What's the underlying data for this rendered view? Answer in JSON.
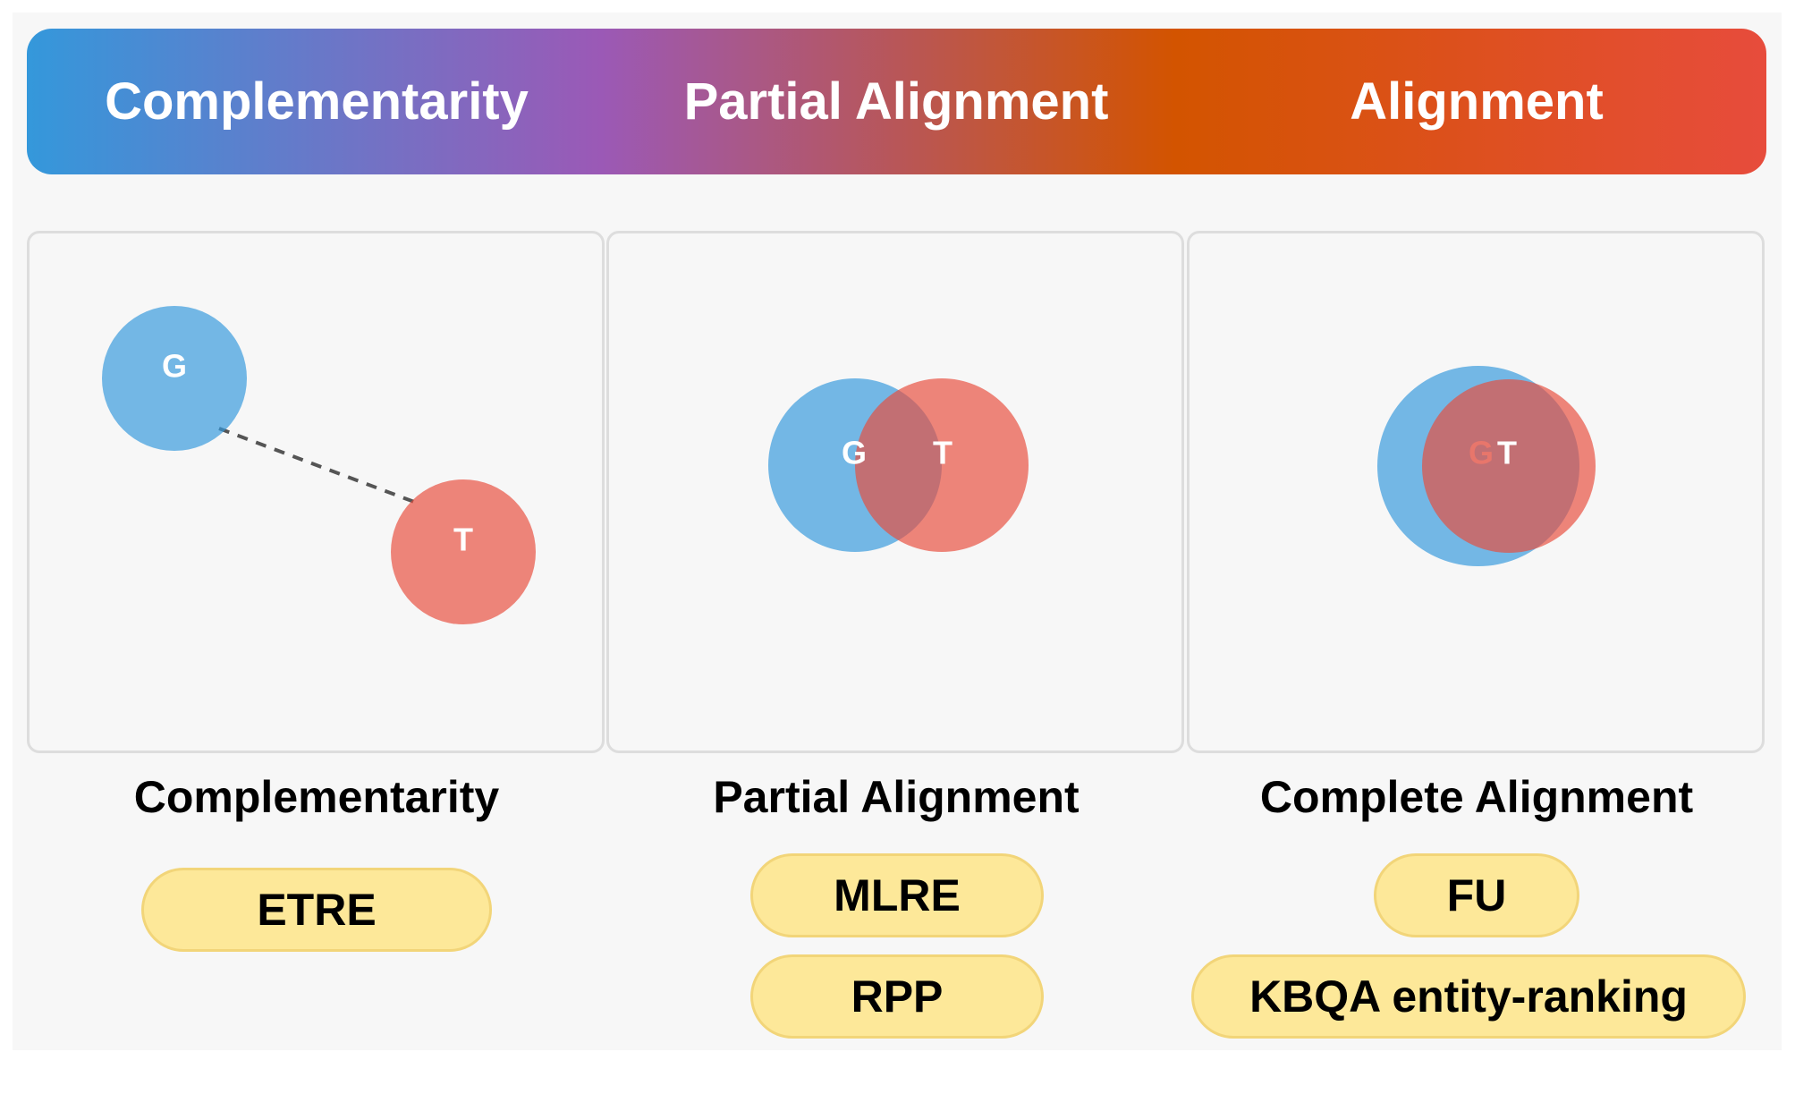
{
  "banner": {
    "labels": [
      "Complementarity",
      "Partial Alignment",
      "Alignment"
    ]
  },
  "colors": {
    "blue": "#3498db",
    "red": "#e74c3c",
    "pill_fill": "#fde899",
    "pill_border": "#f2d579"
  },
  "panels": [
    {
      "caption": "Complementarity",
      "circle_g": "G",
      "circle_t": "T",
      "tags": [
        "ETRE"
      ]
    },
    {
      "caption": "Partial Alignment",
      "circle_g": "G",
      "circle_t": "T",
      "tags": [
        "MLRE",
        "RPP"
      ]
    },
    {
      "caption": "Complete Alignment",
      "circle_g": "G",
      "circle_t": "T",
      "tags": [
        "FU",
        "KBQA entity-ranking"
      ]
    }
  ]
}
